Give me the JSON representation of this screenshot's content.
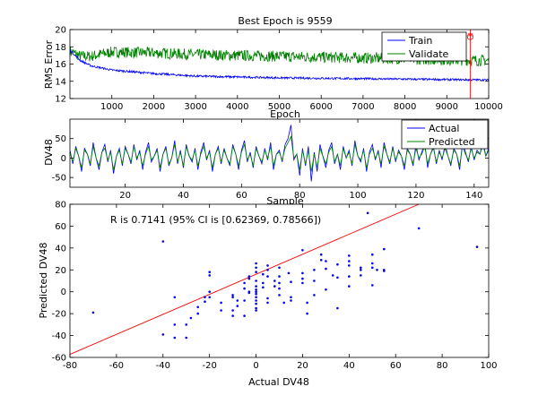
{
  "chart_data": [
    {
      "type": "line",
      "title": "Best Epoch is 9559",
      "xlabel": "Epoch",
      "ylabel": "RMS Error",
      "xlim": [
        0,
        10000
      ],
      "ylim": [
        12,
        20
      ],
      "xticks": [
        1000,
        2000,
        3000,
        4000,
        5000,
        6000,
        7000,
        8000,
        9000,
        10000
      ],
      "yticks": [
        12,
        14,
        16,
        18,
        20
      ],
      "legend_position": "top-right",
      "best_epoch": 9559,
      "series": [
        {
          "name": "Train",
          "color": "#0000ff",
          "x": [
            0,
            250,
            500,
            1000,
            2000,
            3000,
            4000,
            5000,
            6000,
            7000,
            8000,
            9000,
            10000
          ],
          "y": [
            17.6,
            16.4,
            15.8,
            15.3,
            14.9,
            14.6,
            14.5,
            14.4,
            14.35,
            14.3,
            14.25,
            14.2,
            14.15
          ],
          "noise": 0.12
        },
        {
          "name": "Validate",
          "color": "#008000",
          "x": [
            0,
            250,
            500,
            1000,
            2000,
            3000,
            4000,
            5000,
            6000,
            7000,
            8000,
            9000,
            10000
          ],
          "y": [
            17.5,
            16.9,
            16.9,
            17.4,
            17.3,
            17.1,
            17.0,
            16.9,
            16.8,
            16.7,
            16.6,
            16.5,
            16.4
          ],
          "noise": 0.65
        }
      ]
    },
    {
      "type": "line",
      "title": "",
      "xlabel": "Sample",
      "ylabel": "DV48",
      "xlim": [
        1,
        145
      ],
      "ylim": [
        -75,
        100
      ],
      "xticks": [
        20,
        40,
        60,
        80,
        100,
        120,
        140
      ],
      "yticks": [
        -50,
        0,
        50
      ],
      "legend_position": "top-right",
      "series": [
        {
          "name": "Actual",
          "color": "#0000ff",
          "values": [
            20,
            -15,
            30,
            5,
            -35,
            25,
            10,
            -20,
            40,
            0,
            -30,
            15,
            35,
            -10,
            20,
            -40,
            5,
            25,
            -20,
            30,
            10,
            -15,
            35,
            -5,
            20,
            -30,
            15,
            40,
            -10,
            5,
            25,
            -35,
            10,
            30,
            -20,
            0,
            45,
            -15,
            20,
            -25,
            35,
            5,
            -10,
            25,
            -30,
            15,
            40,
            -5,
            20,
            -35,
            10,
            30,
            -15,
            25,
            0,
            -20,
            35,
            10,
            -30,
            20,
            45,
            -10,
            15,
            -25,
            30,
            5,
            -15,
            25,
            -5,
            40,
            -30,
            10,
            20,
            -10,
            35,
            50,
            85,
            -5,
            10,
            -45,
            25,
            -20,
            30,
            -60,
            15,
            -35,
            35,
            5,
            -25,
            20,
            40,
            -15,
            10,
            -30,
            30,
            0,
            20,
            -20,
            45,
            5,
            -10,
            25,
            -35,
            15,
            35,
            -5,
            20,
            -25,
            40,
            10,
            -15,
            30,
            -10,
            20,
            5,
            -30,
            25,
            10,
            -20,
            35,
            -5,
            15,
            40,
            -25,
            10,
            30,
            -15,
            20,
            -5,
            35,
            5,
            -20,
            25,
            10,
            -30,
            40,
            15,
            -10,
            30,
            -5,
            20,
            10,
            45,
            5,
            25
          ],
          "noise": 0
        },
        {
          "name": "Predicted",
          "color": "#008000",
          "values": [
            15,
            -10,
            25,
            5,
            -25,
            20,
            10,
            -15,
            30,
            0,
            -20,
            15,
            25,
            -5,
            15,
            -30,
            5,
            20,
            -15,
            25,
            10,
            -10,
            30,
            0,
            15,
            -20,
            10,
            30,
            -5,
            5,
            20,
            -25,
            10,
            25,
            -15,
            0,
            35,
            -10,
            15,
            -20,
            30,
            5,
            -5,
            20,
            -20,
            10,
            30,
            0,
            15,
            -25,
            10,
            25,
            -10,
            20,
            0,
            -15,
            30,
            10,
            -20,
            15,
            35,
            -5,
            10,
            -20,
            25,
            5,
            -10,
            20,
            0,
            30,
            -20,
            10,
            15,
            -5,
            25,
            40,
            55,
            0,
            10,
            -30,
            20,
            -15,
            20,
            -35,
            10,
            -25,
            25,
            5,
            -15,
            15,
            30,
            -10,
            10,
            -20,
            25,
            0,
            15,
            -15,
            35,
            5,
            -5,
            20,
            -25,
            10,
            25,
            0,
            15,
            -15,
            30,
            10,
            -10,
            25,
            -5,
            15,
            5,
            -20,
            20,
            10,
            -15,
            25,
            0,
            10,
            30,
            -15,
            10,
            25,
            -10,
            15,
            0,
            25,
            5,
            -15,
            20,
            10,
            -20,
            30,
            10,
            -5,
            25,
            0,
            15,
            10,
            35,
            5,
            20
          ],
          "noise": 0
        }
      ]
    },
    {
      "type": "scatter",
      "title": "",
      "xlabel": "Actual DV48",
      "ylabel": "Predicted DV48",
      "xlim": [
        -80,
        100
      ],
      "ylim": [
        -60,
        80
      ],
      "xticks": [
        -80,
        -60,
        -40,
        -20,
        0,
        20,
        40,
        60,
        80,
        100
      ],
      "yticks": [
        -60,
        -40,
        -20,
        0,
        20,
        40,
        60,
        80
      ],
      "annotation": "R is 0.7141 (95% CI is [0.62369, 0.78566])",
      "fit_line": {
        "slope": 0.915,
        "intercept": 16,
        "color": "#ff0000"
      },
      "point_color": "#0000ff",
      "points": [
        [
          -70,
          -19
        ],
        [
          -40,
          46
        ],
        [
          -40,
          -39
        ],
        [
          -35,
          -42
        ],
        [
          -35,
          -30
        ],
        [
          -35,
          -5
        ],
        [
          -30,
          -42
        ],
        [
          -30,
          -30
        ],
        [
          -28,
          -24
        ],
        [
          -25,
          -20
        ],
        [
          -25,
          -14
        ],
        [
          -22,
          -5
        ],
        [
          -22,
          -9
        ],
        [
          -20,
          15
        ],
        [
          -20,
          18
        ],
        [
          -20,
          -5
        ],
        [
          -20,
          0
        ],
        [
          -15,
          -10
        ],
        [
          -15,
          -17
        ],
        [
          -10,
          -17
        ],
        [
          -10,
          -22
        ],
        [
          -10,
          -5
        ],
        [
          -10,
          -3
        ],
        [
          -8,
          -13
        ],
        [
          -8,
          -8
        ],
        [
          -5,
          -22
        ],
        [
          -5,
          -8
        ],
        [
          -5,
          3
        ],
        [
          -5,
          8
        ],
        [
          -3,
          14
        ],
        [
          -3,
          12
        ],
        [
          -3,
          0
        ],
        [
          -3,
          -1
        ],
        [
          0,
          26
        ],
        [
          0,
          22
        ],
        [
          0,
          18
        ],
        [
          0,
          10
        ],
        [
          0,
          5
        ],
        [
          0,
          2
        ],
        [
          0,
          0
        ],
        [
          0,
          -2
        ],
        [
          0,
          -5
        ],
        [
          0,
          -8
        ],
        [
          0,
          -11
        ],
        [
          0,
          -15
        ],
        [
          0,
          -17
        ],
        [
          3,
          16
        ],
        [
          3,
          8
        ],
        [
          3,
          4
        ],
        [
          5,
          24
        ],
        [
          5,
          20
        ],
        [
          5,
          14
        ],
        [
          5,
          -6
        ],
        [
          5,
          -10
        ],
        [
          8,
          10
        ],
        [
          8,
          5
        ],
        [
          10,
          22
        ],
        [
          10,
          14
        ],
        [
          10,
          8
        ],
        [
          10,
          3
        ],
        [
          10,
          -3
        ],
        [
          12,
          -10
        ],
        [
          14,
          17
        ],
        [
          15,
          9
        ],
        [
          15,
          -5
        ],
        [
          15,
          -8
        ],
        [
          20,
          38
        ],
        [
          20,
          17
        ],
        [
          20,
          12
        ],
        [
          20,
          8
        ],
        [
          22,
          -10
        ],
        [
          22,
          -20
        ],
        [
          25,
          20
        ],
        [
          25,
          10
        ],
        [
          25,
          -3
        ],
        [
          28,
          34
        ],
        [
          28,
          29
        ],
        [
          30,
          28
        ],
        [
          30,
          21
        ],
        [
          30,
          2
        ],
        [
          33,
          15
        ],
        [
          35,
          25
        ],
        [
          35,
          13
        ],
        [
          35,
          -15
        ],
        [
          40,
          33
        ],
        [
          40,
          24
        ],
        [
          40,
          28
        ],
        [
          40,
          14
        ],
        [
          40,
          5
        ],
        [
          45,
          22
        ],
        [
          45,
          20
        ],
        [
          45,
          15
        ],
        [
          48,
          72
        ],
        [
          50,
          34
        ],
        [
          50,
          26
        ],
        [
          50,
          22
        ],
        [
          50,
          6
        ],
        [
          52,
          20
        ],
        [
          55,
          39
        ],
        [
          55,
          20
        ],
        [
          55,
          19
        ],
        [
          70,
          58
        ],
        [
          95,
          41
        ]
      ]
    }
  ]
}
